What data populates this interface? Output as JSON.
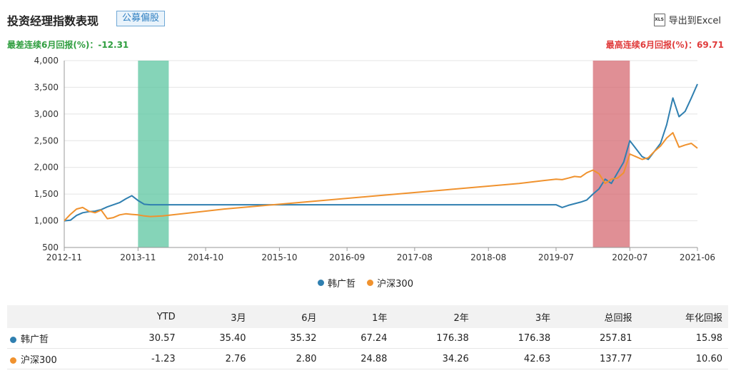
{
  "header": {
    "title": "投资经理指数表现",
    "tag": "公募偏股",
    "export_label": "导出到Excel",
    "export_icon": "xls-file-icon",
    "export_icon_text": "XLS"
  },
  "stats": {
    "worst_label": "最差连续6月回报(%)：",
    "worst_value": "-12.31",
    "best_label": "最高连续6月回报(%)：",
    "best_value": "69.71"
  },
  "chart_data": {
    "type": "line",
    "ylim": [
      500,
      4000
    ],
    "yticks": [
      "500",
      "1,000",
      "1,500",
      "2,000",
      "2,500",
      "3,000",
      "3,500",
      "4,000"
    ],
    "ytick_values": [
      500,
      1000,
      1500,
      2000,
      2500,
      3000,
      3500,
      4000
    ],
    "xlim": [
      "2012-11",
      "2021-06"
    ],
    "xticks": [
      "2012-11",
      "2013-11",
      "2014-10",
      "2015-10",
      "2016-09",
      "2017-08",
      "2018-08",
      "2019-07",
      "2020-07",
      "2021-06"
    ],
    "grid": true,
    "legend_position": "bottom-center",
    "highlights": [
      {
        "kind": "worst_6m",
        "start": "2013-11",
        "end": "2014-04",
        "color": "#5cc6a0"
      },
      {
        "kind": "best_6m",
        "start": "2020-01",
        "end": "2020-07",
        "color": "#d66a72"
      }
    ],
    "series": [
      {
        "name": "韩广哲",
        "color": "#2f7fb0",
        "points": [
          [
            "2012-11",
            1000
          ],
          [
            "2012-12",
            1010
          ],
          [
            "2013-01",
            1100
          ],
          [
            "2013-02",
            1150
          ],
          [
            "2013-03",
            1170
          ],
          [
            "2013-04",
            1180
          ],
          [
            "2013-05",
            1210
          ],
          [
            "2013-06",
            1260
          ],
          [
            "2013-07",
            1300
          ],
          [
            "2013-08",
            1340
          ],
          [
            "2013-09",
            1410
          ],
          [
            "2013-10",
            1470
          ],
          [
            "2013-11",
            1380
          ],
          [
            "2013-12",
            1310
          ],
          [
            "2014-01",
            1300
          ],
          [
            "2014-03",
            1300
          ],
          [
            "2015-01",
            1300
          ],
          [
            "2016-01",
            1300
          ],
          [
            "2017-01",
            1300
          ],
          [
            "2018-01",
            1300
          ],
          [
            "2019-01",
            1300
          ],
          [
            "2019-07",
            1300
          ],
          [
            "2019-08",
            1250
          ],
          [
            "2019-09",
            1290
          ],
          [
            "2019-10",
            1320
          ],
          [
            "2019-11",
            1350
          ],
          [
            "2019-12",
            1390
          ],
          [
            "2020-01",
            1500
          ],
          [
            "2020-02",
            1600
          ],
          [
            "2020-03",
            1780
          ],
          [
            "2020-04",
            1700
          ],
          [
            "2020-05",
            1900
          ],
          [
            "2020-06",
            2100
          ],
          [
            "2020-07",
            2500
          ],
          [
            "2020-08",
            2350
          ],
          [
            "2020-09",
            2200
          ],
          [
            "2020-10",
            2150
          ],
          [
            "2020-11",
            2300
          ],
          [
            "2020-12",
            2450
          ],
          [
            "2021-01",
            2800
          ],
          [
            "2021-02",
            3300
          ],
          [
            "2021-03",
            2950
          ],
          [
            "2021-04",
            3050
          ],
          [
            "2021-05",
            3300
          ],
          [
            "2021-06",
            3560
          ]
        ]
      },
      {
        "name": "沪深300",
        "color": "#f0922e",
        "points": [
          [
            "2012-11",
            1000
          ],
          [
            "2012-12",
            1120
          ],
          [
            "2013-01",
            1220
          ],
          [
            "2013-02",
            1250
          ],
          [
            "2013-03",
            1180
          ],
          [
            "2013-04",
            1150
          ],
          [
            "2013-05",
            1200
          ],
          [
            "2013-06",
            1040
          ],
          [
            "2013-07",
            1060
          ],
          [
            "2013-08",
            1110
          ],
          [
            "2013-09",
            1130
          ],
          [
            "2013-10",
            1120
          ],
          [
            "2013-11",
            1110
          ],
          [
            "2013-12",
            1090
          ],
          [
            "2014-01",
            1080
          ],
          [
            "2014-03",
            1090
          ],
          [
            "2015-01",
            1220
          ],
          [
            "2016-01",
            1340
          ],
          [
            "2017-01",
            1460
          ],
          [
            "2018-01",
            1580
          ],
          [
            "2019-01",
            1700
          ],
          [
            "2019-07",
            1780
          ],
          [
            "2019-08",
            1770
          ],
          [
            "2019-09",
            1800
          ],
          [
            "2019-10",
            1830
          ],
          [
            "2019-11",
            1820
          ],
          [
            "2019-12",
            1900
          ],
          [
            "2020-01",
            1950
          ],
          [
            "2020-02",
            1880
          ],
          [
            "2020-03",
            1700
          ],
          [
            "2020-04",
            1780
          ],
          [
            "2020-05",
            1800
          ],
          [
            "2020-06",
            1900
          ],
          [
            "2020-07",
            2250
          ],
          [
            "2020-08",
            2200
          ],
          [
            "2020-09",
            2150
          ],
          [
            "2020-10",
            2180
          ],
          [
            "2020-11",
            2300
          ],
          [
            "2020-12",
            2400
          ],
          [
            "2021-01",
            2550
          ],
          [
            "2021-02",
            2650
          ],
          [
            "2021-03",
            2380
          ],
          [
            "2021-04",
            2420
          ],
          [
            "2021-05",
            2450
          ],
          [
            "2021-06",
            2360
          ]
        ]
      }
    ]
  },
  "table": {
    "columns": [
      "",
      "YTD",
      "3月",
      "6月",
      "1年",
      "2年",
      "3年",
      "总回报",
      "年化回报"
    ],
    "rows": [
      {
        "name": "韩广哲",
        "color": "#2f7fb0",
        "values": [
          "30.57",
          "35.40",
          "35.32",
          "67.24",
          "176.38",
          "176.38",
          "257.81",
          "15.98"
        ]
      },
      {
        "name": "沪深300",
        "color": "#f0922e",
        "values": [
          "-1.23",
          "2.76",
          "2.80",
          "24.88",
          "34.26",
          "42.63",
          "137.77",
          "10.60"
        ]
      }
    ]
  }
}
